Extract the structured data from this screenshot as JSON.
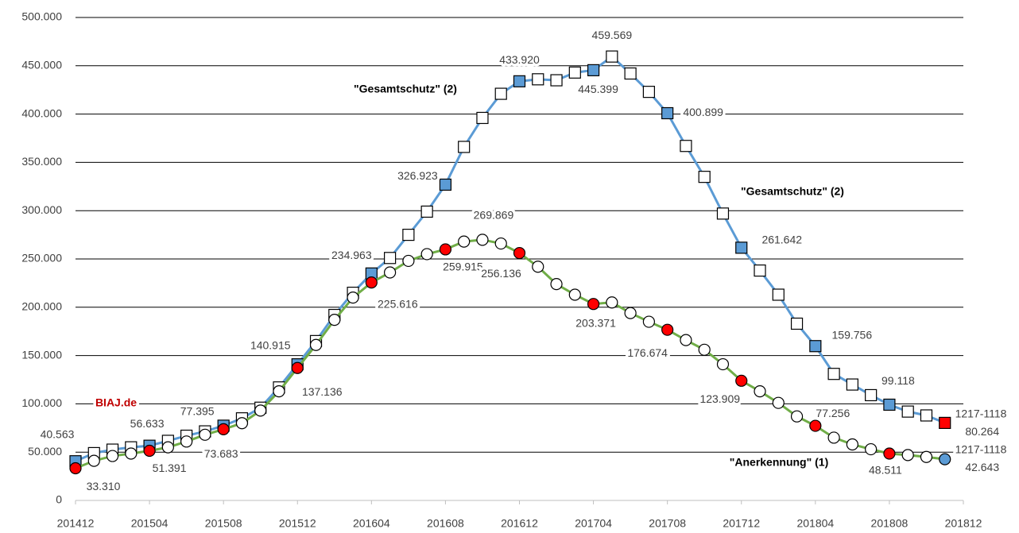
{
  "chart_data": {
    "type": "line",
    "categories": [
      "201412",
      null,
      null,
      null,
      "201504",
      null,
      null,
      null,
      "201508",
      null,
      null,
      null,
      "201512",
      null,
      null,
      null,
      "201604",
      null,
      null,
      null,
      "201608",
      null,
      null,
      null,
      "201612",
      null,
      null,
      null,
      "201704",
      null,
      null,
      null,
      "201708",
      null,
      null,
      null,
      "201712",
      null,
      null,
      null,
      "201804",
      null,
      null,
      null,
      "201808",
      null,
      null,
      null,
      "201812"
    ],
    "series": [
      {
        "name": "\"Gesamtschutz\" (2)",
        "color": "#5b9bd5",
        "marker": "square",
        "highlight_color": "#5b9bd5",
        "end_color": "#ff0000",
        "values": [
          40563,
          49000,
          52600,
          55000,
          56633,
          61700,
          67000,
          71500,
          77395,
          85000,
          96000,
          117000,
          140915,
          165000,
          192000,
          215000,
          234963,
          251000,
          275000,
          299000,
          326923,
          366000,
          396000,
          421000,
          433920,
          436000,
          435000,
          443000,
          445399,
          459569,
          442000,
          423000,
          400899,
          367000,
          335000,
          297000,
          261642,
          238000,
          213000,
          183000,
          159756,
          131000,
          120000,
          109000,
          99118,
          92000,
          88000,
          80264,
          null
        ],
        "value_labels": [
          "40.563",
          null,
          null,
          null,
          "56.633",
          null,
          null,
          null,
          "77.395",
          null,
          null,
          null,
          "140.915",
          null,
          null,
          null,
          "234.963",
          null,
          null,
          null,
          "326.923",
          null,
          null,
          null,
          "433.920",
          null,
          null,
          null,
          "445.399",
          "459.569",
          null,
          null,
          "400.899",
          null,
          null,
          null,
          "261.642",
          null,
          null,
          null,
          "159.756",
          null,
          null,
          null,
          "99.118",
          null,
          null,
          "80.264",
          null
        ]
      },
      {
        "name": "\"Anerkennung\" (1)",
        "color": "#70ad47",
        "marker": "circle",
        "highlight_color": "#ff0000",
        "end_color": "#5b9bd5",
        "values": [
          33310,
          41000,
          46000,
          48500,
          51391,
          55000,
          61000,
          68000,
          73683,
          80000,
          93000,
          113000,
          137136,
          161000,
          187000,
          210000,
          225616,
          236000,
          248000,
          255000,
          259915,
          268000,
          269869,
          266000,
          256136,
          242000,
          224000,
          213000,
          203371,
          205000,
          194000,
          185000,
          176674,
          166000,
          156000,
          141000,
          123909,
          113000,
          101000,
          87000,
          77256,
          65000,
          58000,
          53000,
          48511,
          47000,
          45000,
          42643,
          null
        ],
        "value_labels": [
          "33.310",
          null,
          null,
          null,
          "51.391",
          null,
          null,
          null,
          "73.683",
          null,
          null,
          null,
          "137.136",
          null,
          null,
          null,
          "225.616",
          null,
          null,
          null,
          "259.915",
          null,
          "269.869",
          null,
          "256.136",
          null,
          null,
          null,
          "203.371",
          null,
          null,
          null,
          "176.674",
          null,
          null,
          null,
          "123.909",
          null,
          null,
          null,
          "77.256",
          null,
          null,
          null,
          "48.511",
          null,
          null,
          "42.643",
          null
        ]
      }
    ],
    "annotations": [
      "\"Gesamtschutz\" (2)",
      "BIAJ.de",
      "1217-1118",
      "1217-1118"
    ],
    "ylim": [
      0,
      500000
    ],
    "yticks": [
      0,
      {
        "value": 50000,
        "label": "50.000"
      },
      {
        "value": 100000,
        "label": "100.000"
      },
      {
        "value": 150000,
        "label": "150.000"
      },
      {
        "value": 200000,
        "label": "200.000"
      },
      {
        "value": 250000,
        "label": "250.000"
      },
      {
        "value": 300000,
        "label": "300.000"
      },
      {
        "value": 350000,
        "label": "350.000"
      },
      {
        "value": 400000,
        "label": "400.000"
      },
      {
        "value": 450000,
        "label": "450.000"
      },
      {
        "value": 500000,
        "label": "500.000"
      }
    ],
    "grid": true
  }
}
